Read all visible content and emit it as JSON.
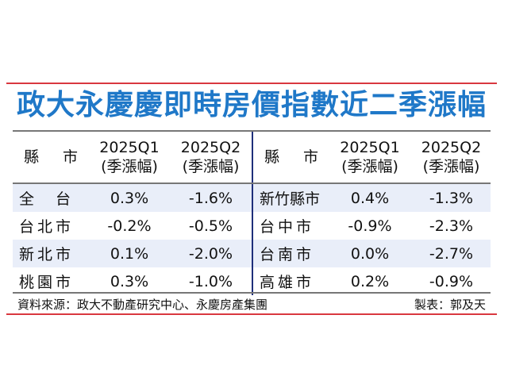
{
  "title": "政大永慶慶即時房價指數近二季漲幅",
  "header": {
    "city_a": "縣",
    "city_b": "市",
    "q1_year": "2025Q1",
    "q1_sub": "(季漲幅)",
    "q2_year": "2025Q2",
    "q2_sub": "(季漲幅)"
  },
  "left_rows": [
    {
      "city": "全　台",
      "q1": "0.3%",
      "q2": "-1.6%"
    },
    {
      "city": "台北市",
      "q1": "-0.2%",
      "q2": "-0.5%"
    },
    {
      "city": "新北市",
      "q1": "0.1%",
      "q2": "-2.0%"
    },
    {
      "city": "桃園市",
      "q1": "0.3%",
      "q2": "-1.0%"
    }
  ],
  "right_rows": [
    {
      "city": "新竹縣市",
      "q1": "0.4%",
      "q2": "-1.3%"
    },
    {
      "city": "台中市",
      "q1": "-0.9%",
      "q2": "-2.3%"
    },
    {
      "city": "台南市",
      "q1": "0.0%",
      "q2": "-2.7%"
    },
    {
      "city": "高雄市",
      "q1": "0.2%",
      "q2": "-0.9%"
    }
  ],
  "footer": {
    "source": "資料來源：政大不動產研究中心、永慶房產集團",
    "credit": "製表：郭及天"
  },
  "colors": {
    "title": "#1f78c8",
    "accent_rule": "#d9383f",
    "row_shade": "#e9eef9",
    "divider": "#1f2f7a"
  }
}
